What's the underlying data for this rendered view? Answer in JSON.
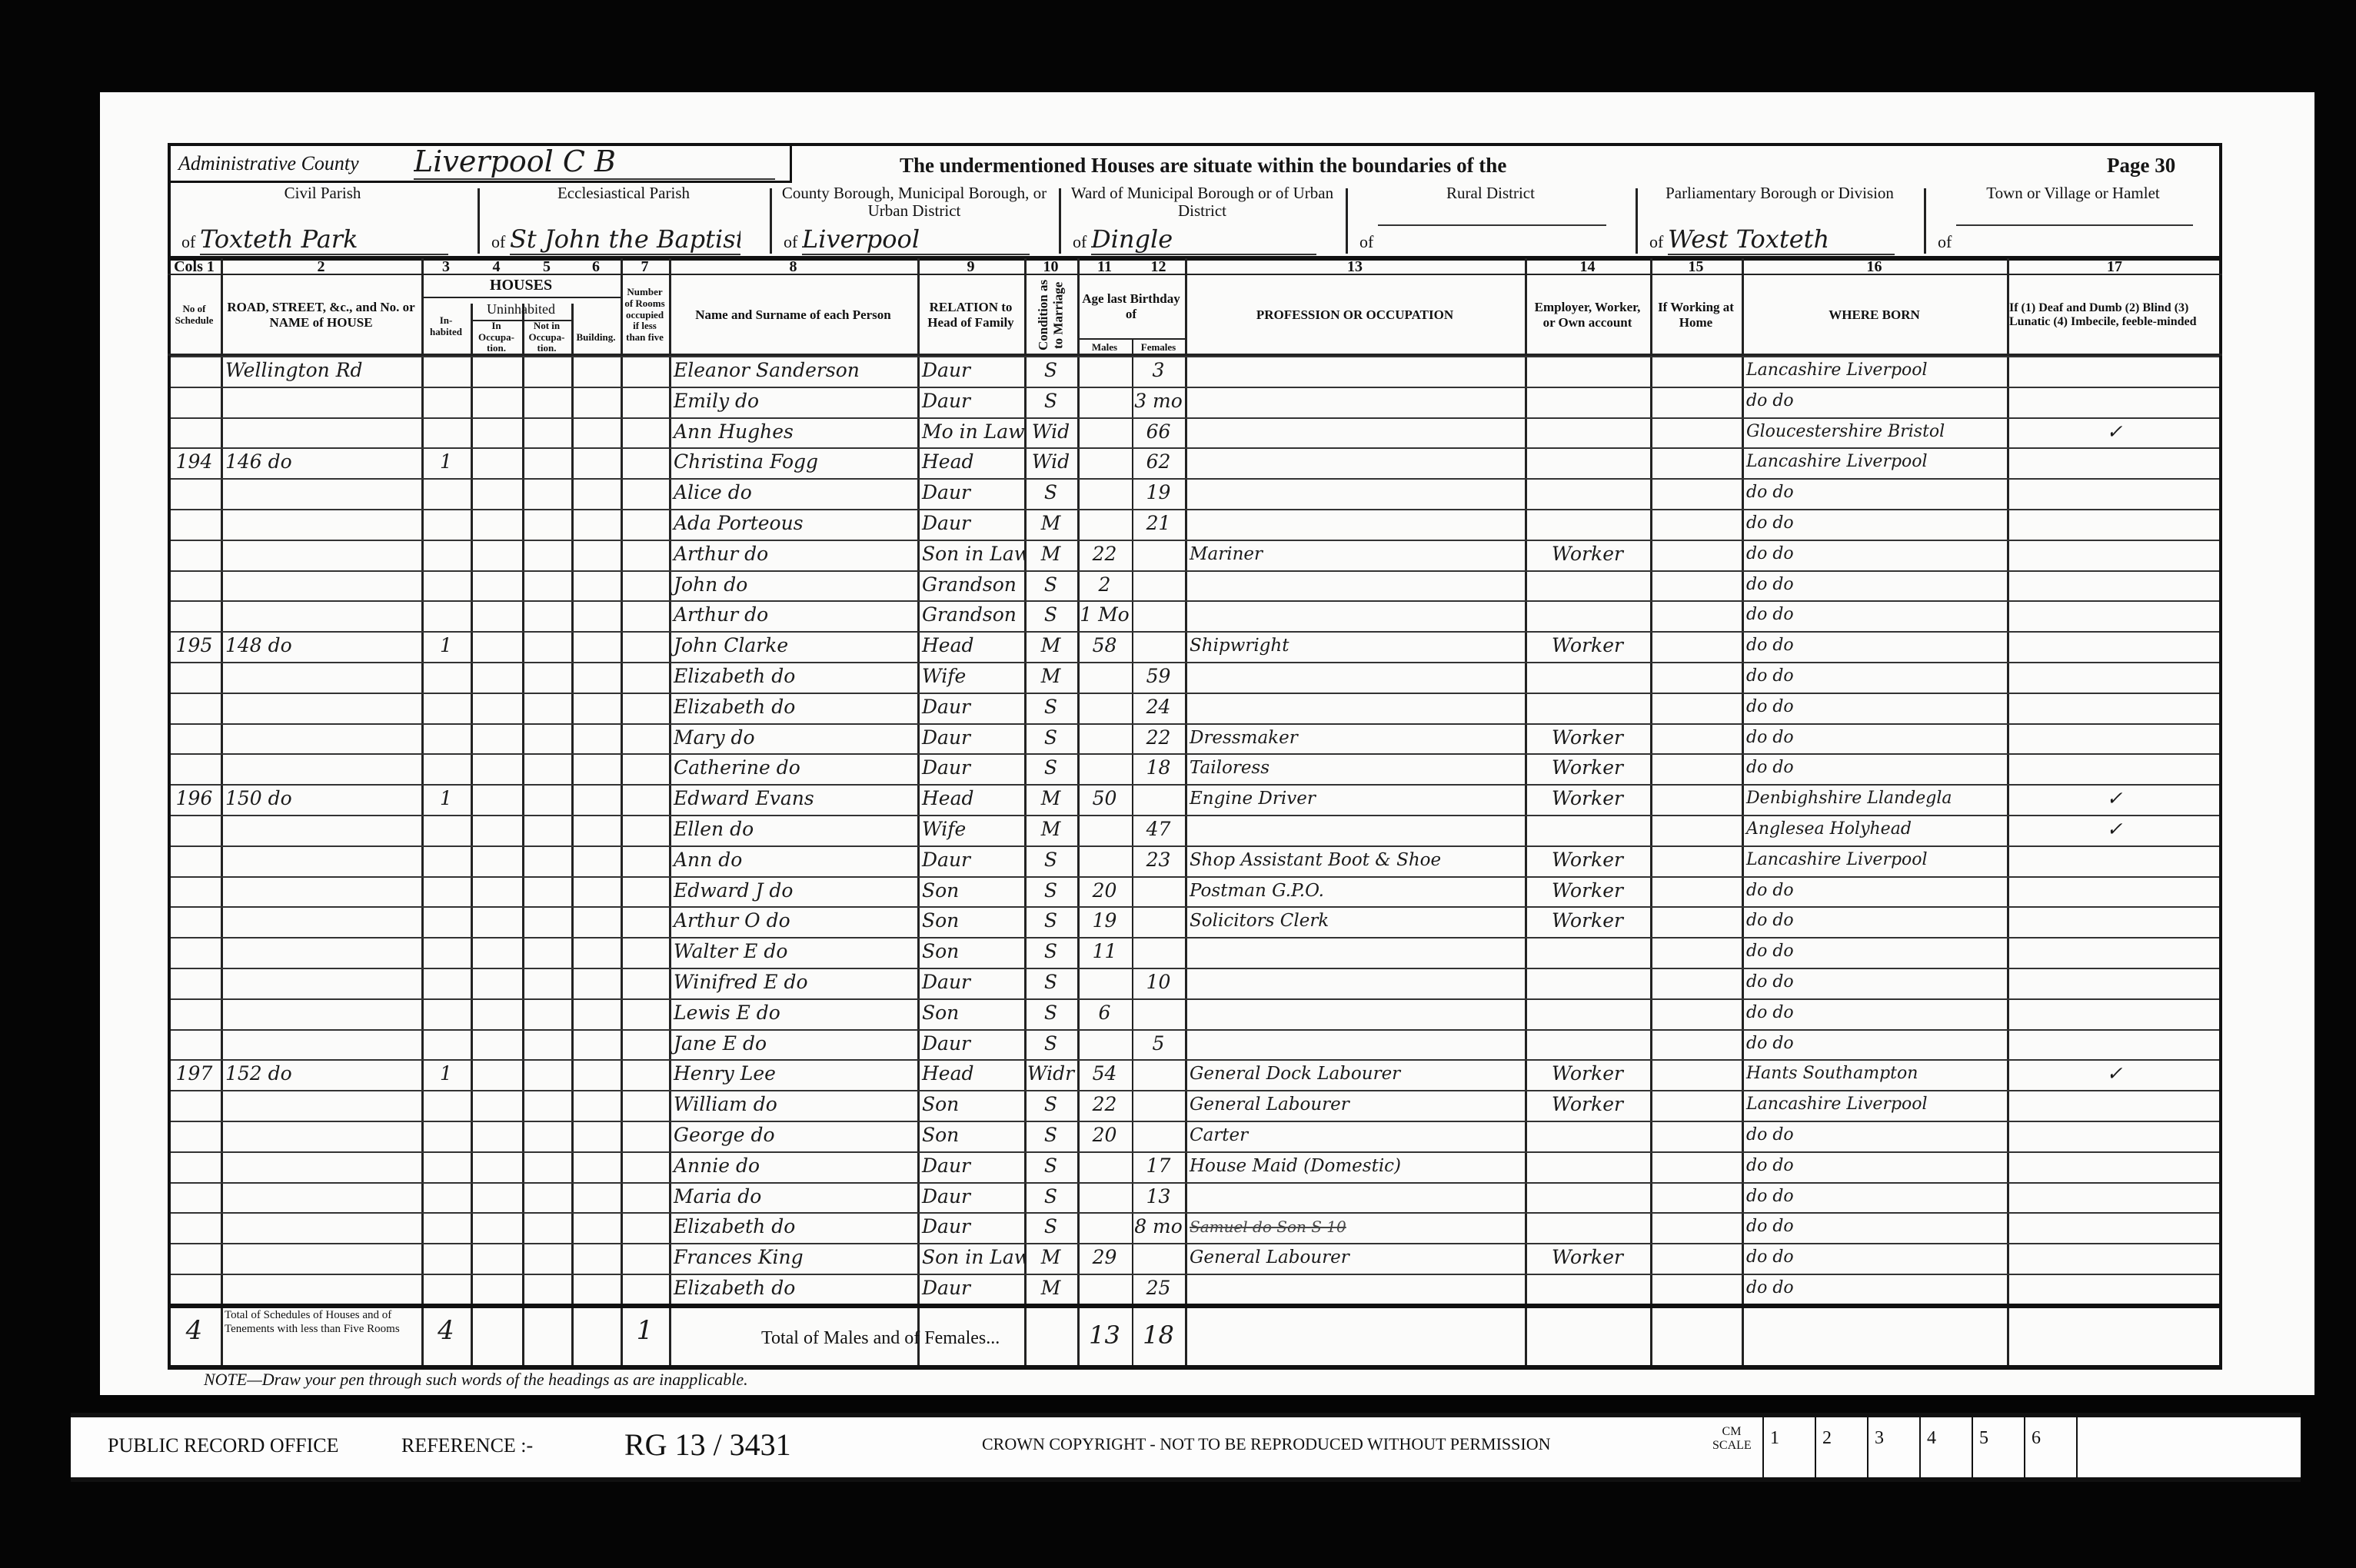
{
  "header": {
    "admin_county_label": "Administrative County",
    "admin_county_value": "Liverpool C B",
    "title": "The undermentioned Houses are situate within the boundaries of the",
    "page_label": "Page 30",
    "sections": [
      {
        "label": "Civil Parish",
        "prefix": "of",
        "value": "Toxteth Park"
      },
      {
        "label": "Ecclesiastical Parish",
        "prefix": "of",
        "value": "St John the Baptist"
      },
      {
        "label": "County Borough, Municipal Borough, or Urban District",
        "prefix": "of",
        "value": "Liverpool"
      },
      {
        "label": "Ward of Municipal Borough or of Urban District",
        "prefix": "of",
        "value": "Dingle"
      },
      {
        "label": "Rural District",
        "prefix": "of",
        "value": ""
      },
      {
        "label": "Parliamentary Borough or Division",
        "prefix": "of",
        "value": "West Toxteth"
      },
      {
        "label": "Town or Village or Hamlet",
        "prefix": "of",
        "value": ""
      }
    ]
  },
  "columns": {
    "numbers": [
      "Cols 1",
      "2",
      "3",
      "4",
      "5",
      "6",
      "7",
      "8",
      "9",
      "10",
      "11",
      "12",
      "13",
      "14",
      "15",
      "16",
      "17"
    ],
    "houses_label": "HOUSES",
    "uninhabited_label": "Uninhabited",
    "age_label": "Age last Birthday of",
    "labels": [
      "No of Schedule",
      "ROAD, STREET, &c., and No. or NAME of HOUSE",
      "In-habited",
      "In Occupa-tion.",
      "Not in Occupa-tion.",
      "Building.",
      "Number of Rooms occupied if less than five",
      "Name and Surname of each Person",
      "RELATION to Head of Family",
      "Condition as to Marriage",
      "Males",
      "Females",
      "PROFESSION OR OCCUPATION",
      "Employer, Worker, or Own account",
      "If Working at Home",
      "WHERE BORN",
      "If (1) Deaf and Dumb (2) Blind (3) Lunatic (4) Imbecile, feeble-minded"
    ]
  },
  "rows": [
    {
      "sched": "",
      "address": "Wellington Rd",
      "inhabited": "",
      "name": "Eleanor Sanderson",
      "relation": "Daur",
      "condition": "S",
      "age_m": "",
      "age_f": "3",
      "occupation": "",
      "employment": "",
      "where_born": "Lancashire Liverpool",
      "infirmity": ""
    },
    {
      "sched": "",
      "address": "",
      "inhabited": "",
      "name": "Emily do",
      "relation": "Daur",
      "condition": "S",
      "age_m": "",
      "age_f": "3 mo",
      "occupation": "",
      "employment": "",
      "where_born": "do do",
      "infirmity": ""
    },
    {
      "sched": "",
      "address": "",
      "inhabited": "",
      "name": "Ann Hughes",
      "relation": "Mo in Law",
      "condition": "Wid",
      "age_m": "",
      "age_f": "66",
      "occupation": "",
      "employment": "",
      "where_born": "Gloucestershire Bristol",
      "infirmity": "✓"
    },
    {
      "sched": "194",
      "address": "146 do",
      "inhabited": "1",
      "name": "Christina Fogg",
      "relation": "Head",
      "condition": "Wid",
      "age_m": "",
      "age_f": "62",
      "occupation": "",
      "employment": "",
      "where_born": "Lancashire Liverpool",
      "infirmity": ""
    },
    {
      "sched": "",
      "address": "",
      "inhabited": "",
      "name": "Alice do",
      "relation": "Daur",
      "condition": "S",
      "age_m": "",
      "age_f": "19",
      "occupation": "",
      "employment": "",
      "where_born": "do do",
      "infirmity": ""
    },
    {
      "sched": "",
      "address": "",
      "inhabited": "",
      "name": "Ada Porteous",
      "relation": "Daur",
      "condition": "M",
      "age_m": "",
      "age_f": "21",
      "occupation": "",
      "employment": "",
      "where_born": "do do",
      "infirmity": ""
    },
    {
      "sched": "",
      "address": "",
      "inhabited": "",
      "name": "Arthur do",
      "relation": "Son in Law",
      "condition": "M",
      "age_m": "22",
      "age_f": "",
      "occupation": "Mariner",
      "employment": "Worker",
      "where_born": "do do",
      "infirmity": ""
    },
    {
      "sched": "",
      "address": "",
      "inhabited": "",
      "name": "John do",
      "relation": "Grandson",
      "condition": "S",
      "age_m": "2",
      "age_f": "",
      "occupation": "",
      "employment": "",
      "where_born": "do do",
      "infirmity": ""
    },
    {
      "sched": "",
      "address": "",
      "inhabited": "",
      "name": "Arthur do",
      "relation": "Grandson",
      "condition": "S",
      "age_m": "1 Mo",
      "age_f": "",
      "occupation": "",
      "employment": "",
      "where_born": "do do",
      "infirmity": ""
    },
    {
      "sched": "195",
      "address": "148 do",
      "inhabited": "1",
      "name": "John Clarke",
      "relation": "Head",
      "condition": "M",
      "age_m": "58",
      "age_f": "",
      "occupation": "Shipwright",
      "employment": "Worker",
      "where_born": "do do",
      "infirmity": ""
    },
    {
      "sched": "",
      "address": "",
      "inhabited": "",
      "name": "Elizabeth do",
      "relation": "Wife",
      "condition": "M",
      "age_m": "",
      "age_f": "59",
      "occupation": "",
      "employment": "",
      "where_born": "do do",
      "infirmity": ""
    },
    {
      "sched": "",
      "address": "",
      "inhabited": "",
      "name": "Elizabeth do",
      "relation": "Daur",
      "condition": "S",
      "age_m": "",
      "age_f": "24",
      "occupation": "",
      "employment": "",
      "where_born": "do do",
      "infirmity": ""
    },
    {
      "sched": "",
      "address": "",
      "inhabited": "",
      "name": "Mary do",
      "relation": "Daur",
      "condition": "S",
      "age_m": "",
      "age_f": "22",
      "occupation": "Dressmaker",
      "employment": "Worker",
      "where_born": "do do",
      "infirmity": ""
    },
    {
      "sched": "",
      "address": "",
      "inhabited": "",
      "name": "Catherine do",
      "relation": "Daur",
      "condition": "S",
      "age_m": "",
      "age_f": "18",
      "occupation": "Tailoress",
      "employment": "Worker",
      "where_born": "do do",
      "infirmity": ""
    },
    {
      "sched": "196",
      "address": "150 do",
      "inhabited": "1",
      "name": "Edward Evans",
      "relation": "Head",
      "condition": "M",
      "age_m": "50",
      "age_f": "",
      "occupation": "Engine Driver",
      "employment": "Worker",
      "where_born": "Denbighshire Llandegla",
      "infirmity": "✓"
    },
    {
      "sched": "",
      "address": "",
      "inhabited": "",
      "name": "Ellen do",
      "relation": "Wife",
      "condition": "M",
      "age_m": "",
      "age_f": "47",
      "occupation": "",
      "employment": "",
      "where_born": "Anglesea Holyhead",
      "infirmity": "✓"
    },
    {
      "sched": "",
      "address": "",
      "inhabited": "",
      "name": "Ann do",
      "relation": "Daur",
      "condition": "S",
      "age_m": "",
      "age_f": "23",
      "occupation": "Shop Assistant Boot & Shoe",
      "employment": "Worker",
      "where_born": "Lancashire Liverpool",
      "infirmity": ""
    },
    {
      "sched": "",
      "address": "",
      "inhabited": "",
      "name": "Edward J do",
      "relation": "Son",
      "condition": "S",
      "age_m": "20",
      "age_f": "",
      "occupation": "Postman G.P.O.",
      "employment": "Worker",
      "where_born": "do do",
      "infirmity": ""
    },
    {
      "sched": "",
      "address": "",
      "inhabited": "",
      "name": "Arthur O do",
      "relation": "Son",
      "condition": "S",
      "age_m": "19",
      "age_f": "",
      "occupation": "Solicitors Clerk",
      "employment": "Worker",
      "where_born": "do do",
      "infirmity": ""
    },
    {
      "sched": "",
      "address": "",
      "inhabited": "",
      "name": "Walter E do",
      "relation": "Son",
      "condition": "S",
      "age_m": "11",
      "age_f": "",
      "occupation": "",
      "employment": "",
      "where_born": "do do",
      "infirmity": ""
    },
    {
      "sched": "",
      "address": "",
      "inhabited": "",
      "name": "Winifred E do",
      "relation": "Daur",
      "condition": "S",
      "age_m": "",
      "age_f": "10",
      "occupation": "",
      "employment": "",
      "where_born": "do do",
      "infirmity": ""
    },
    {
      "sched": "",
      "address": "",
      "inhabited": "",
      "name": "Lewis E do",
      "relation": "Son",
      "condition": "S",
      "age_m": "6",
      "age_f": "",
      "occupation": "",
      "employment": "",
      "where_born": "do do",
      "infirmity": ""
    },
    {
      "sched": "",
      "address": "",
      "inhabited": "",
      "name": "Jane E do",
      "relation": "Daur",
      "condition": "S",
      "age_m": "",
      "age_f": "5",
      "occupation": "",
      "employment": "",
      "where_born": "do do",
      "infirmity": ""
    },
    {
      "sched": "197",
      "address": "152 do",
      "inhabited": "1",
      "name": "Henry Lee",
      "relation": "Head",
      "condition": "Widr",
      "age_m": "54",
      "age_f": "",
      "occupation": "General Dock Labourer",
      "employment": "Worker",
      "where_born": "Hants Southampton",
      "infirmity": "✓"
    },
    {
      "sched": "",
      "address": "",
      "inhabited": "",
      "name": "William do",
      "relation": "Son",
      "condition": "S",
      "age_m": "22",
      "age_f": "",
      "occupation": "General Labourer",
      "employment": "Worker",
      "where_born": "Lancashire Liverpool",
      "infirmity": ""
    },
    {
      "sched": "",
      "address": "",
      "inhabited": "",
      "name": "George do",
      "relation": "Son",
      "condition": "S",
      "age_m": "20",
      "age_f": "",
      "occupation": "Carter",
      "employment": "",
      "where_born": "do do",
      "infirmity": ""
    },
    {
      "sched": "",
      "address": "",
      "inhabited": "",
      "name": "Annie do",
      "relation": "Daur",
      "condition": "S",
      "age_m": "",
      "age_f": "17",
      "occupation": "House Maid (Domestic)",
      "employment": "",
      "where_born": "do do",
      "infirmity": ""
    },
    {
      "sched": "",
      "address": "",
      "inhabited": "",
      "name": "Maria do",
      "relation": "Daur",
      "condition": "S",
      "age_m": "",
      "age_f": "13",
      "occupation": "",
      "employment": "",
      "where_born": "do do",
      "infirmity": ""
    },
    {
      "sched": "",
      "address": "",
      "inhabited": "",
      "name": "Elizabeth do",
      "relation": "Daur",
      "condition": "S",
      "age_m": "",
      "age_f": "8 mo",
      "occupation": "",
      "employment": "",
      "where_born": "do do",
      "infirmity": "",
      "struck": "Samuel do Son S 10"
    },
    {
      "sched": "",
      "address": "",
      "inhabited": "",
      "name": "Frances King",
      "relation": "Son in Law",
      "condition": "M",
      "age_m": "29",
      "age_f": "",
      "occupation": "General Labourer",
      "employment": "Worker",
      "where_born": "do do",
      "infirmity": ""
    },
    {
      "sched": "",
      "address": "",
      "inhabited": "",
      "name": "Elizabeth do",
      "relation": "Daur",
      "condition": "M",
      "age_m": "",
      "age_f": "25",
      "occupation": "",
      "employment": "",
      "where_born": "do do",
      "infirmity": ""
    }
  ],
  "totals": {
    "schedules": "4",
    "schedules_label": "Total of Schedules of Houses and of Tenements with less than Five Rooms",
    "inhabited": "4",
    "rooms": "1",
    "label": "Total of Males and of Females...",
    "males": "13",
    "females": "18"
  },
  "note": "NOTE—Draw your pen through such words of the headings as are inapplicable.",
  "footer": {
    "office": "PUBLIC RECORD OFFICE",
    "reference_label": "REFERENCE :-",
    "reference": "RG 13 / 3431",
    "copyright": "CROWN COPYRIGHT  -  NOT TO BE REPRODUCED WITHOUT PERMISSION",
    "scale_label": "CM SCALE",
    "scale_marks": [
      "1",
      "2",
      "3",
      "4",
      "5",
      "6"
    ]
  }
}
